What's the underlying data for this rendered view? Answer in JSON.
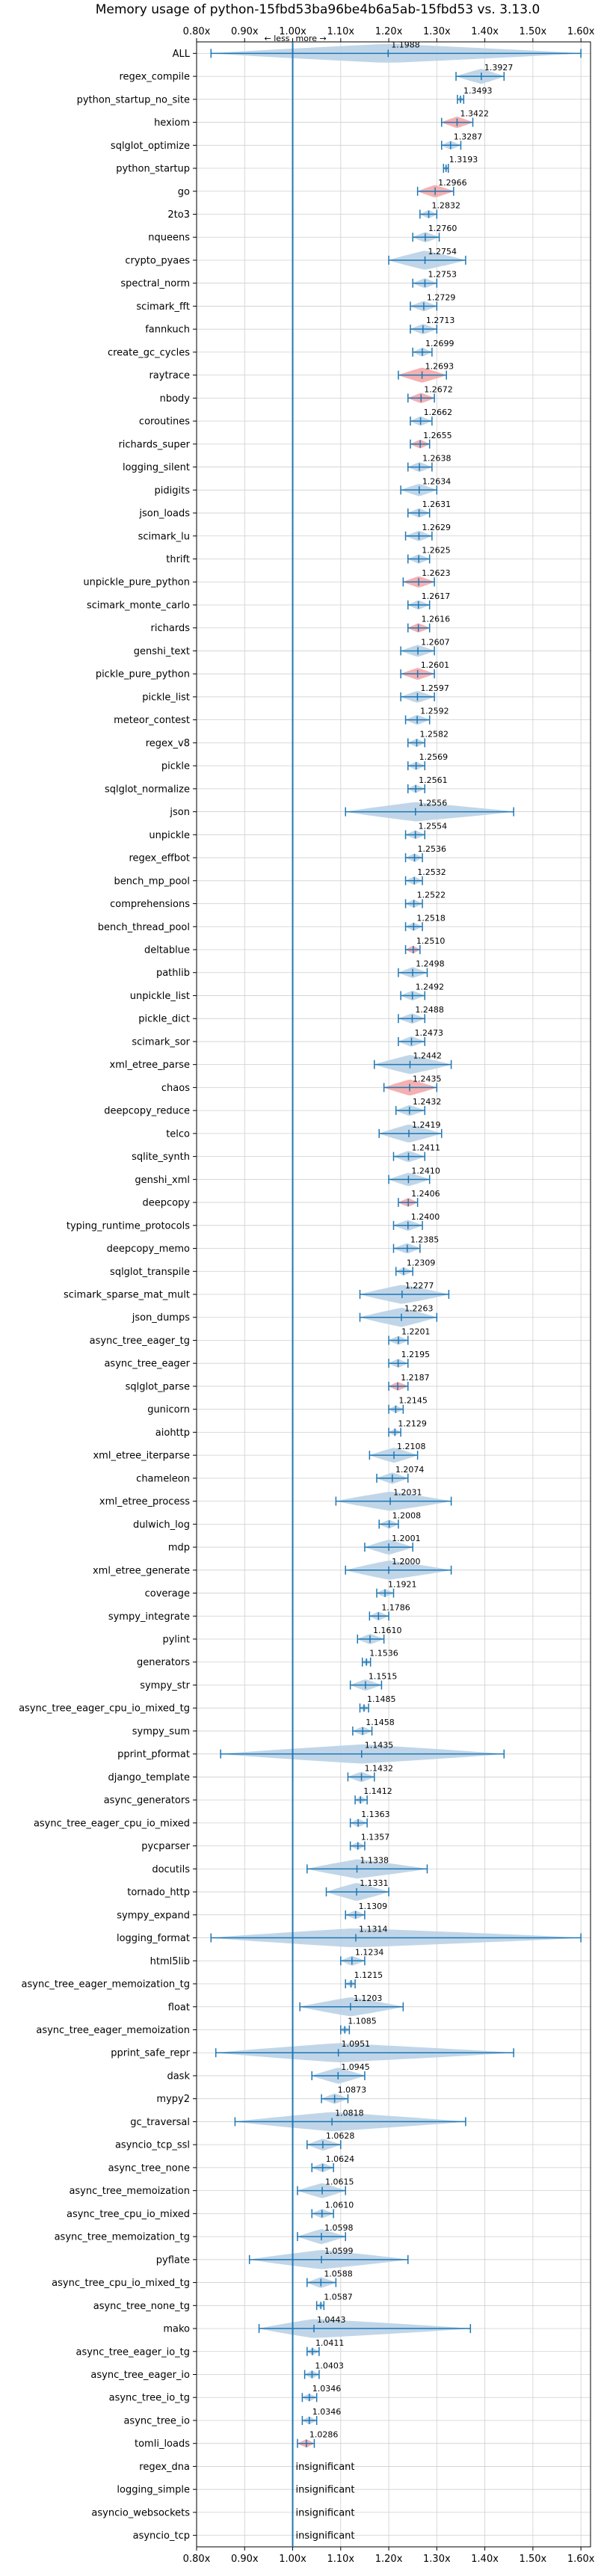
{
  "chart_data": {
    "type": "violin",
    "title": "Memory usage of python-15fbd53ba96be4b6a5ab-15fbd53 vs. 3.13.0",
    "xlim": [
      0.8,
      1.62
    ],
    "xticks": [
      "0.80x",
      "0.90x",
      "1.00x",
      "1.10x",
      "1.20x",
      "1.30x",
      "1.40x",
      "1.50x",
      "1.60x"
    ],
    "xtick_values": [
      0.8,
      0.9,
      1.0,
      1.1,
      1.2,
      1.3,
      1.4,
      1.5,
      1.6
    ],
    "less_label": "← less",
    "more_label": "more →",
    "grid": true,
    "colors": {
      "normal": "#1f77b4",
      "violin": "#b9d1e6",
      "regression": "#f4a7a8",
      "ref_line": "#1f77b4"
    },
    "benchmarks": [
      {
        "name": "ALL",
        "mean": 1.1988,
        "lo": 0.83,
        "hi": 1.6,
        "label": "1.1988",
        "red": false
      },
      {
        "name": "regex_compile",
        "mean": 1.3927,
        "lo": 1.34,
        "hi": 1.44,
        "label": "1.3927",
        "red": false
      },
      {
        "name": "python_startup_no_site",
        "mean": 1.3493,
        "lo": 1.343,
        "hi": 1.356,
        "label": "1.3493",
        "red": false
      },
      {
        "name": "hexiom",
        "mean": 1.3422,
        "lo": 1.31,
        "hi": 1.375,
        "label": "1.3422",
        "red": true
      },
      {
        "name": "sqlglot_optimize",
        "mean": 1.3287,
        "lo": 1.31,
        "hi": 1.35,
        "label": "1.3287",
        "red": false
      },
      {
        "name": "python_startup",
        "mean": 1.3193,
        "lo": 1.314,
        "hi": 1.324,
        "label": "1.3193",
        "red": false
      },
      {
        "name": "go",
        "mean": 1.2966,
        "lo": 1.26,
        "hi": 1.335,
        "label": "1.2966",
        "red": true
      },
      {
        "name": "2to3",
        "mean": 1.2832,
        "lo": 1.265,
        "hi": 1.3,
        "label": "1.2832",
        "red": false
      },
      {
        "name": "nqueens",
        "mean": 1.276,
        "lo": 1.25,
        "hi": 1.305,
        "label": "1.2760",
        "red": false
      },
      {
        "name": "crypto_pyaes",
        "mean": 1.2754,
        "lo": 1.2,
        "hi": 1.36,
        "label": "1.2754",
        "red": false
      },
      {
        "name": "spectral_norm",
        "mean": 1.2753,
        "lo": 1.25,
        "hi": 1.3,
        "label": "1.2753",
        "red": false
      },
      {
        "name": "scimark_fft",
        "mean": 1.2729,
        "lo": 1.245,
        "hi": 1.3,
        "label": "1.2729",
        "red": false
      },
      {
        "name": "fannkuch",
        "mean": 1.2713,
        "lo": 1.245,
        "hi": 1.3,
        "label": "1.2713",
        "red": false
      },
      {
        "name": "create_gc_cycles",
        "mean": 1.2699,
        "lo": 1.25,
        "hi": 1.29,
        "label": "1.2699",
        "red": false
      },
      {
        "name": "raytrace",
        "mean": 1.2693,
        "lo": 1.22,
        "hi": 1.32,
        "label": "1.2693",
        "red": true
      },
      {
        "name": "nbody",
        "mean": 1.2672,
        "lo": 1.24,
        "hi": 1.295,
        "label": "1.2672",
        "red": true
      },
      {
        "name": "coroutines",
        "mean": 1.2662,
        "lo": 1.245,
        "hi": 1.29,
        "label": "1.2662",
        "red": false
      },
      {
        "name": "richards_super",
        "mean": 1.2655,
        "lo": 1.245,
        "hi": 1.285,
        "label": "1.2655",
        "red": true
      },
      {
        "name": "logging_silent",
        "mean": 1.2638,
        "lo": 1.24,
        "hi": 1.29,
        "label": "1.2638",
        "red": false
      },
      {
        "name": "pidigits",
        "mean": 1.2634,
        "lo": 1.225,
        "hi": 1.3,
        "label": "1.2634",
        "red": false
      },
      {
        "name": "json_loads",
        "mean": 1.2631,
        "lo": 1.24,
        "hi": 1.285,
        "label": "1.2631",
        "red": false
      },
      {
        "name": "scimark_lu",
        "mean": 1.2629,
        "lo": 1.235,
        "hi": 1.29,
        "label": "1.2629",
        "red": false
      },
      {
        "name": "thrift",
        "mean": 1.2625,
        "lo": 1.24,
        "hi": 1.285,
        "label": "1.2625",
        "red": false
      },
      {
        "name": "unpickle_pure_python",
        "mean": 1.2623,
        "lo": 1.23,
        "hi": 1.295,
        "label": "1.2623",
        "red": true
      },
      {
        "name": "scimark_monte_carlo",
        "mean": 1.2617,
        "lo": 1.24,
        "hi": 1.285,
        "label": "1.2617",
        "red": false
      },
      {
        "name": "richards",
        "mean": 1.2616,
        "lo": 1.24,
        "hi": 1.285,
        "label": "1.2616",
        "red": true
      },
      {
        "name": "genshi_text",
        "mean": 1.2607,
        "lo": 1.225,
        "hi": 1.295,
        "label": "1.2607",
        "red": false
      },
      {
        "name": "pickle_pure_python",
        "mean": 1.2601,
        "lo": 1.225,
        "hi": 1.295,
        "label": "1.2601",
        "red": true
      },
      {
        "name": "pickle_list",
        "mean": 1.2597,
        "lo": 1.225,
        "hi": 1.295,
        "label": "1.2597",
        "red": false
      },
      {
        "name": "meteor_contest",
        "mean": 1.2592,
        "lo": 1.235,
        "hi": 1.285,
        "label": "1.2592",
        "red": false
      },
      {
        "name": "regex_v8",
        "mean": 1.2582,
        "lo": 1.24,
        "hi": 1.275,
        "label": "1.2582",
        "red": false
      },
      {
        "name": "pickle",
        "mean": 1.2569,
        "lo": 1.24,
        "hi": 1.275,
        "label": "1.2569",
        "red": false
      },
      {
        "name": "sqlglot_normalize",
        "mean": 1.2561,
        "lo": 1.24,
        "hi": 1.275,
        "label": "1.2561",
        "red": false
      },
      {
        "name": "json",
        "mean": 1.2556,
        "lo": 1.11,
        "hi": 1.46,
        "label": "1.2556",
        "red": false
      },
      {
        "name": "unpickle",
        "mean": 1.2554,
        "lo": 1.235,
        "hi": 1.275,
        "label": "1.2554",
        "red": false
      },
      {
        "name": "regex_effbot",
        "mean": 1.2536,
        "lo": 1.235,
        "hi": 1.27,
        "label": "1.2536",
        "red": false
      },
      {
        "name": "bench_mp_pool",
        "mean": 1.2532,
        "lo": 1.235,
        "hi": 1.27,
        "label": "1.2532",
        "red": false
      },
      {
        "name": "comprehensions",
        "mean": 1.2522,
        "lo": 1.235,
        "hi": 1.27,
        "label": "1.2522",
        "red": false
      },
      {
        "name": "bench_thread_pool",
        "mean": 1.2518,
        "lo": 1.235,
        "hi": 1.27,
        "label": "1.2518",
        "red": false
      },
      {
        "name": "deltablue",
        "mean": 1.251,
        "lo": 1.235,
        "hi": 1.265,
        "label": "1.2510",
        "red": true
      },
      {
        "name": "pathlib",
        "mean": 1.2498,
        "lo": 1.22,
        "hi": 1.28,
        "label": "1.2498",
        "red": false
      },
      {
        "name": "unpickle_list",
        "mean": 1.2492,
        "lo": 1.225,
        "hi": 1.275,
        "label": "1.2492",
        "red": false
      },
      {
        "name": "pickle_dict",
        "mean": 1.2488,
        "lo": 1.22,
        "hi": 1.275,
        "label": "1.2488",
        "red": false
      },
      {
        "name": "scimark_sor",
        "mean": 1.2473,
        "lo": 1.22,
        "hi": 1.275,
        "label": "1.2473",
        "red": false
      },
      {
        "name": "xml_etree_parse",
        "mean": 1.2442,
        "lo": 1.17,
        "hi": 1.33,
        "label": "1.2442",
        "red": false
      },
      {
        "name": "chaos",
        "mean": 1.2435,
        "lo": 1.19,
        "hi": 1.3,
        "label": "1.2435",
        "red": true
      },
      {
        "name": "deepcopy_reduce",
        "mean": 1.2432,
        "lo": 1.215,
        "hi": 1.275,
        "label": "1.2432",
        "red": false
      },
      {
        "name": "telco",
        "mean": 1.2419,
        "lo": 1.18,
        "hi": 1.31,
        "label": "1.2419",
        "red": false
      },
      {
        "name": "sqlite_synth",
        "mean": 1.2411,
        "lo": 1.21,
        "hi": 1.275,
        "label": "1.2411",
        "red": false
      },
      {
        "name": "genshi_xml",
        "mean": 1.241,
        "lo": 1.2,
        "hi": 1.285,
        "label": "1.2410",
        "red": false
      },
      {
        "name": "deepcopy",
        "mean": 1.2406,
        "lo": 1.22,
        "hi": 1.26,
        "label": "1.2406",
        "red": true
      },
      {
        "name": "typing_runtime_protocols",
        "mean": 1.24,
        "lo": 1.21,
        "hi": 1.27,
        "label": "1.2400",
        "red": false
      },
      {
        "name": "deepcopy_memo",
        "mean": 1.2385,
        "lo": 1.21,
        "hi": 1.265,
        "label": "1.2385",
        "red": false
      },
      {
        "name": "sqlglot_transpile",
        "mean": 1.2309,
        "lo": 1.215,
        "hi": 1.25,
        "label": "1.2309",
        "red": false
      },
      {
        "name": "scimark_sparse_mat_mult",
        "mean": 1.2277,
        "lo": 1.14,
        "hi": 1.325,
        "label": "1.2277",
        "red": false
      },
      {
        "name": "json_dumps",
        "mean": 1.2263,
        "lo": 1.14,
        "hi": 1.3,
        "label": "1.2263",
        "red": false
      },
      {
        "name": "async_tree_eager_tg",
        "mean": 1.2201,
        "lo": 1.2,
        "hi": 1.24,
        "label": "1.2201",
        "red": false
      },
      {
        "name": "async_tree_eager",
        "mean": 1.2195,
        "lo": 1.2,
        "hi": 1.24,
        "label": "1.2195",
        "red": false
      },
      {
        "name": "sqlglot_parse",
        "mean": 1.2187,
        "lo": 1.2,
        "hi": 1.24,
        "label": "1.2187",
        "red": true
      },
      {
        "name": "gunicorn",
        "mean": 1.2145,
        "lo": 1.2,
        "hi": 1.23,
        "label": "1.2145",
        "red": false
      },
      {
        "name": "aiohttp",
        "mean": 1.2129,
        "lo": 1.2,
        "hi": 1.225,
        "label": "1.2129",
        "red": false
      },
      {
        "name": "xml_etree_iterparse",
        "mean": 1.2108,
        "lo": 1.16,
        "hi": 1.26,
        "label": "1.2108",
        "red": false
      },
      {
        "name": "chameleon",
        "mean": 1.2074,
        "lo": 1.175,
        "hi": 1.24,
        "label": "1.2074",
        "red": false
      },
      {
        "name": "xml_etree_process",
        "mean": 1.2031,
        "lo": 1.09,
        "hi": 1.33,
        "label": "1.2031",
        "red": false
      },
      {
        "name": "dulwich_log",
        "mean": 1.2008,
        "lo": 1.18,
        "hi": 1.22,
        "label": "1.2008",
        "red": false
      },
      {
        "name": "mdp",
        "mean": 1.2001,
        "lo": 1.15,
        "hi": 1.25,
        "label": "1.2001",
        "red": false
      },
      {
        "name": "xml_etree_generate",
        "mean": 1.2,
        "lo": 1.11,
        "hi": 1.33,
        "label": "1.2000",
        "red": false
      },
      {
        "name": "coverage",
        "mean": 1.1921,
        "lo": 1.175,
        "hi": 1.21,
        "label": "1.1921",
        "red": false
      },
      {
        "name": "sympy_integrate",
        "mean": 1.1786,
        "lo": 1.16,
        "hi": 1.2,
        "label": "1.1786",
        "red": false
      },
      {
        "name": "pylint",
        "mean": 1.161,
        "lo": 1.135,
        "hi": 1.19,
        "label": "1.1610",
        "red": false
      },
      {
        "name": "generators",
        "mean": 1.1536,
        "lo": 1.145,
        "hi": 1.162,
        "label": "1.1536",
        "red": false
      },
      {
        "name": "sympy_str",
        "mean": 1.1515,
        "lo": 1.12,
        "hi": 1.185,
        "label": "1.1515",
        "red": false
      },
      {
        "name": "async_tree_eager_cpu_io_mixed_tg",
        "mean": 1.1485,
        "lo": 1.14,
        "hi": 1.158,
        "label": "1.1485",
        "red": false
      },
      {
        "name": "sympy_sum",
        "mean": 1.1458,
        "lo": 1.125,
        "hi": 1.165,
        "label": "1.1458",
        "red": false
      },
      {
        "name": "pprint_pformat",
        "mean": 1.1435,
        "lo": 0.85,
        "hi": 1.44,
        "label": "1.1435",
        "red": false
      },
      {
        "name": "django_template",
        "mean": 1.1432,
        "lo": 1.115,
        "hi": 1.17,
        "label": "1.1432",
        "red": false
      },
      {
        "name": "async_generators",
        "mean": 1.1412,
        "lo": 1.13,
        "hi": 1.155,
        "label": "1.1412",
        "red": false
      },
      {
        "name": "async_tree_eager_cpu_io_mixed",
        "mean": 1.1363,
        "lo": 1.12,
        "hi": 1.155,
        "label": "1.1363",
        "red": false
      },
      {
        "name": "pycparser",
        "mean": 1.1357,
        "lo": 1.12,
        "hi": 1.15,
        "label": "1.1357",
        "red": false
      },
      {
        "name": "docutils",
        "mean": 1.1338,
        "lo": 1.03,
        "hi": 1.28,
        "label": "1.1338",
        "red": false
      },
      {
        "name": "tornado_http",
        "mean": 1.1331,
        "lo": 1.07,
        "hi": 1.2,
        "label": "1.1331",
        "red": false
      },
      {
        "name": "sympy_expand",
        "mean": 1.1309,
        "lo": 1.11,
        "hi": 1.15,
        "label": "1.1309",
        "red": false
      },
      {
        "name": "logging_format",
        "mean": 1.1314,
        "lo": 0.83,
        "hi": 1.6,
        "label": "1.1314",
        "red": false
      },
      {
        "name": "html5lib",
        "mean": 1.1234,
        "lo": 1.1,
        "hi": 1.15,
        "label": "1.1234",
        "red": false
      },
      {
        "name": "async_tree_eager_memoization_tg",
        "mean": 1.1215,
        "lo": 1.11,
        "hi": 1.13,
        "label": "1.1215",
        "red": false
      },
      {
        "name": "float",
        "mean": 1.1203,
        "lo": 1.015,
        "hi": 1.23,
        "label": "1.1203",
        "red": false
      },
      {
        "name": "async_tree_eager_memoization",
        "mean": 1.1085,
        "lo": 1.1,
        "hi": 1.118,
        "label": "1.1085",
        "red": false
      },
      {
        "name": "pprint_safe_repr",
        "mean": 1.0951,
        "lo": 0.84,
        "hi": 1.46,
        "label": "1.0951",
        "red": false
      },
      {
        "name": "dask",
        "mean": 1.0945,
        "lo": 1.04,
        "hi": 1.15,
        "label": "1.0945",
        "red": false
      },
      {
        "name": "mypy2",
        "mean": 1.0873,
        "lo": 1.06,
        "hi": 1.115,
        "label": "1.0873",
        "red": false
      },
      {
        "name": "gc_traversal",
        "mean": 1.0818,
        "lo": 0.88,
        "hi": 1.36,
        "label": "1.0818",
        "red": false
      },
      {
        "name": "asyncio_tcp_ssl",
        "mean": 1.0628,
        "lo": 1.03,
        "hi": 1.1,
        "label": "1.0628",
        "red": false
      },
      {
        "name": "async_tree_none",
        "mean": 1.0624,
        "lo": 1.04,
        "hi": 1.085,
        "label": "1.0624",
        "red": false
      },
      {
        "name": "async_tree_memoization",
        "mean": 1.0615,
        "lo": 1.01,
        "hi": 1.11,
        "label": "1.0615",
        "red": false
      },
      {
        "name": "async_tree_cpu_io_mixed",
        "mean": 1.061,
        "lo": 1.04,
        "hi": 1.085,
        "label": "1.0610",
        "red": false
      },
      {
        "name": "async_tree_memoization_tg",
        "mean": 1.0598,
        "lo": 1.01,
        "hi": 1.11,
        "label": "1.0598",
        "red": false
      },
      {
        "name": "pyflate",
        "mean": 1.0599,
        "lo": 0.91,
        "hi": 1.24,
        "label": "1.0599",
        "red": false
      },
      {
        "name": "async_tree_cpu_io_mixed_tg",
        "mean": 1.0588,
        "lo": 1.03,
        "hi": 1.09,
        "label": "1.0588",
        "red": false
      },
      {
        "name": "async_tree_none_tg",
        "mean": 1.0587,
        "lo": 1.05,
        "hi": 1.065,
        "label": "1.0587",
        "red": false
      },
      {
        "name": "mako",
        "mean": 1.0443,
        "lo": 0.93,
        "hi": 1.37,
        "label": "1.0443",
        "red": false
      },
      {
        "name": "async_tree_eager_io_tg",
        "mean": 1.0411,
        "lo": 1.03,
        "hi": 1.055,
        "label": "1.0411",
        "red": false
      },
      {
        "name": "async_tree_eager_io",
        "mean": 1.0403,
        "lo": 1.025,
        "hi": 1.055,
        "label": "1.0403",
        "red": false
      },
      {
        "name": "async_tree_io_tg",
        "mean": 1.0346,
        "lo": 1.02,
        "hi": 1.05,
        "label": "1.0346",
        "red": false
      },
      {
        "name": "async_tree_io",
        "mean": 1.0346,
        "lo": 1.02,
        "hi": 1.05,
        "label": "1.0346",
        "red": false
      },
      {
        "name": "tomli_loads",
        "mean": 1.0286,
        "lo": 1.01,
        "hi": 1.045,
        "label": "1.0286",
        "red": true
      },
      {
        "name": "regex_dna",
        "mean": null,
        "label": "insignificant",
        "red": false
      },
      {
        "name": "logging_simple",
        "mean": null,
        "label": "insignificant",
        "red": false
      },
      {
        "name": "asyncio_websockets",
        "mean": null,
        "label": "insignificant",
        "red": false
      },
      {
        "name": "asyncio_tcp",
        "mean": null,
        "label": "insignificant",
        "red": false
      }
    ]
  }
}
